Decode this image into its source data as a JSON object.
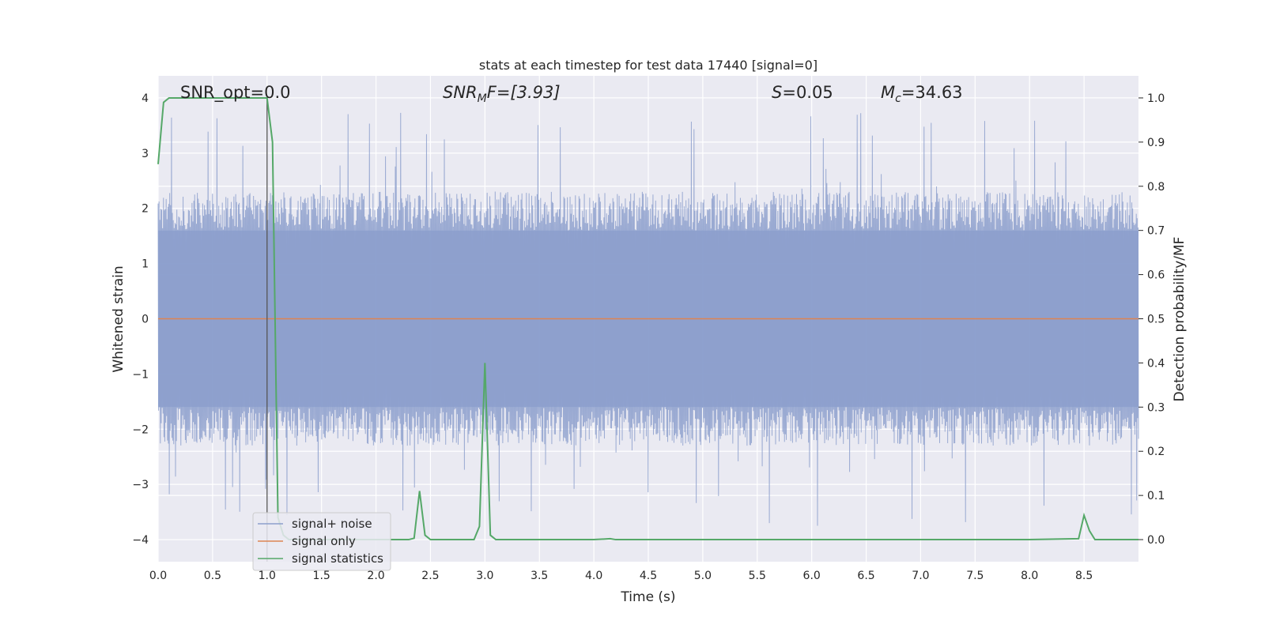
{
  "chart_data": {
    "type": "line",
    "title": "stats at each timestep for test data 17440 [signal=0]",
    "xlabel": "Time (s)",
    "ylabel_left": "Whitened strain",
    "ylabel_right": "Detection probability/MF",
    "xlim": [
      0.0,
      9.0
    ],
    "ylim_left": [
      -4.4,
      4.4
    ],
    "ylim_right": [
      -0.05,
      1.05
    ],
    "x_ticks": [
      0.0,
      0.5,
      1.0,
      1.5,
      2.0,
      2.5,
      3.0,
      3.5,
      4.0,
      4.5,
      5.0,
      5.5,
      6.0,
      6.5,
      7.0,
      7.5,
      8.0,
      8.5
    ],
    "x_tick_labels": [
      "0.0",
      "0.5",
      "1.0",
      "1.5",
      "2.0",
      "2.5",
      "3.0",
      "3.5",
      "4.0",
      "4.5",
      "5.0",
      "5.5",
      "6.0",
      "6.5",
      "7.0",
      "7.5",
      "8.0",
      "8.5"
    ],
    "y_left_ticks": [
      4,
      3,
      2,
      1,
      0,
      -1,
      -2,
      -3,
      -4
    ],
    "y_left_tick_labels": [
      "4",
      "3",
      "2",
      "1",
      "0",
      "−1",
      "−2",
      "−3",
      "−4"
    ],
    "y_right_ticks": [
      1.0,
      0.9,
      0.8,
      0.7,
      0.6,
      0.5,
      0.4,
      0.3,
      0.2,
      0.1,
      0.0
    ],
    "y_right_tick_labels": [
      "1.0",
      "0.9",
      "0.8",
      "0.7",
      "0.6",
      "0.5",
      "0.4",
      "0.3",
      "0.2",
      "0.1",
      "0.0"
    ],
    "grid": true,
    "legend_position": "lower-left",
    "annotations": {
      "snr_opt": "SNR_opt=0.0",
      "snr_mf_label": "SNR",
      "snr_mf_sub": "M",
      "snr_mf_rest": "F=[3.93]",
      "s_label": "S",
      "s_value": "=0.05",
      "mc_label": "M",
      "mc_sub": "c",
      "mc_value": "=34.63"
    },
    "vertical_marker_x": 1.0,
    "series": [
      {
        "name": "signal+ noise",
        "axis": "left",
        "color": "#8c9fcc",
        "style": "dense noise trace, envelope approx ±2.5 with spikes to about ±3.7",
        "envelope": {
          "typical_max": 2.3,
          "typical_min": -2.3,
          "peak_max": 3.75,
          "peak_min": -4.0,
          "core_abs": 1.6
        }
      },
      {
        "name": "signal only",
        "axis": "left",
        "color": "#dd8452",
        "x": [
          0.0,
          9.0
        ],
        "y": [
          0.0,
          0.0
        ]
      },
      {
        "name": "signal statistics",
        "axis": "right",
        "color": "#55a868",
        "x": [
          0.0,
          0.05,
          0.1,
          0.15,
          0.2,
          0.5,
          0.98,
          1.0,
          1.05,
          1.1,
          1.15,
          1.2,
          1.5,
          2.0,
          2.3,
          2.35,
          2.4,
          2.45,
          2.5,
          2.9,
          2.95,
          3.0,
          3.05,
          3.1,
          3.5,
          4.0,
          4.15,
          4.2,
          4.5,
          5.0,
          6.0,
          7.0,
          8.0,
          8.45,
          8.5,
          8.55,
          8.6,
          9.0
        ],
        "y": [
          0.85,
          0.99,
          1.0,
          1.0,
          1.0,
          1.0,
          1.0,
          1.0,
          0.9,
          0.05,
          0.01,
          0.0,
          0.0,
          0.0,
          0.0,
          0.003,
          0.11,
          0.01,
          0.0,
          0.0,
          0.03,
          0.4,
          0.01,
          0.0,
          0.0,
          0.0,
          0.002,
          0.0,
          0.0,
          0.0,
          0.0,
          0.0,
          0.0,
          0.002,
          0.055,
          0.02,
          0.0,
          0.0
        ]
      }
    ]
  }
}
